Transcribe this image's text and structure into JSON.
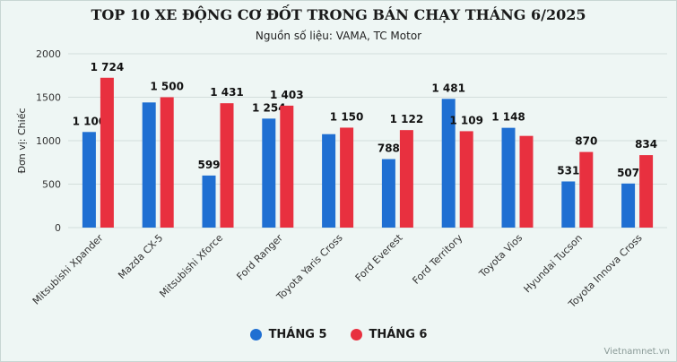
{
  "title": "TOP 10 XE ĐỘNG CƠ ĐỐT TRONG BÁN CHẠY THÁNG 6/2025",
  "subtitle": "Nguồn số liệu: VAMA, TC Motor",
  "credit": "Vietnamnet.vn",
  "colors": {
    "series1": "#1f6fd2",
    "series2": "#e8303f"
  },
  "chart_data": {
    "type": "bar",
    "ylabel": "Đơn vị: Chiếc",
    "ylim": [
      0,
      2000
    ],
    "yticks": [
      0,
      500,
      1000,
      1500,
      2000
    ],
    "grid": true,
    "legend": "bottom",
    "categories": [
      "Mitsubishi Xpander",
      "Mazda CX-5",
      "Mitsubishi Xforce",
      "Ford Ranger",
      "Toyota Yaris Cross",
      "Ford Everest",
      "Ford Territory",
      "Toyota Vios",
      "Hyundai Tucson",
      "Toyota Innova Cross"
    ],
    "series": [
      {
        "name": "THÁNG 5",
        "values": [
          1100,
          1440,
          599,
          1254,
          1075,
          788,
          1481,
          1148,
          531,
          507
        ],
        "labels": [
          "1 100",
          null,
          "599",
          "1 254",
          null,
          "788",
          "1 481",
          "1 148",
          "531",
          "507"
        ]
      },
      {
        "name": "THÁNG 6",
        "values": [
          1724,
          1500,
          1431,
          1403,
          1150,
          1122,
          1109,
          1055,
          870,
          834
        ],
        "labels": [
          "1 724",
          "1 500",
          "1 431",
          "1 403",
          "1 150",
          "1 122",
          "1 109",
          null,
          "870",
          "834"
        ]
      }
    ]
  }
}
